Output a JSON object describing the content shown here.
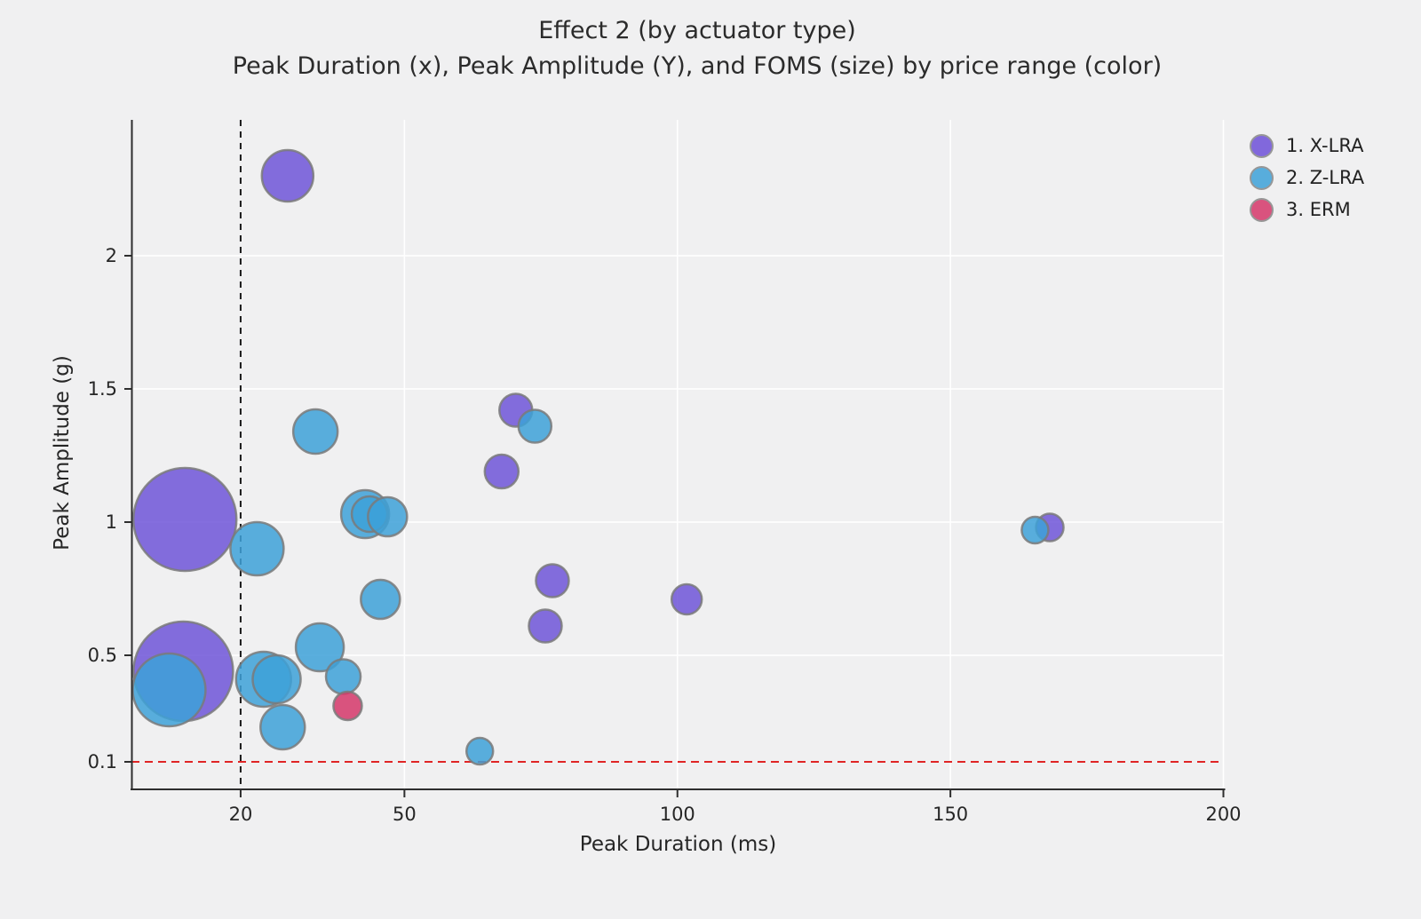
{
  "title": "Effect 2 (by actuator type)",
  "subtitle": "Peak Duration (x), Peak Amplitude (Y), and FOMS (size) by price range (color)",
  "chart_data": {
    "type": "scatter",
    "subtype": "bubble",
    "title": "Effect 2 (by actuator type)",
    "subtitle": "Peak Duration (x), Peak Amplitude (Y), and FOMS (size) by price range (color)",
    "xlabel": "Peak Duration (ms)",
    "ylabel": "Peak Amplitude (g)",
    "xlim": [
      0,
      200
    ],
    "ylim": [
      0,
      2.51
    ],
    "x_ticks": [
      20,
      50,
      100,
      150,
      200
    ],
    "y_ticks": [
      0.1,
      0.5,
      1,
      1.5,
      2
    ],
    "grid": true,
    "grid_color": "#ffffff",
    "background_color": "#f0f0f1",
    "legend_position": "top-right",
    "marker_stroke_color": "#7a7a7a",
    "reference_lines": [
      {
        "orientation": "vertical",
        "value": 20,
        "style": "dashed",
        "color": "#1c1c1c"
      },
      {
        "orientation": "horizontal",
        "value": 0.1,
        "style": "dashed",
        "color": "#e02525"
      }
    ],
    "legend": [
      {
        "label": "1. X-LRA",
        "color": "#8168dc"
      },
      {
        "label": "2. Z-LRA",
        "color": "#58addc"
      },
      {
        "label": "3. ERM",
        "color": "#d9537e"
      }
    ],
    "series": [
      {
        "name": "1. X-LRA",
        "color": "#6f55d8",
        "points": [
          {
            "x": 28.6,
            "y": 2.3,
            "r": 29
          },
          {
            "x": 9.8,
            "y": 1.01,
            "r": 58
          },
          {
            "x": 9.5,
            "y": 0.44,
            "r": 56
          },
          {
            "x": 70.4,
            "y": 1.42,
            "r": 18.5
          },
          {
            "x": 67.8,
            "y": 1.19,
            "r": 19
          },
          {
            "x": 77.1,
            "y": 0.78,
            "r": 18.5
          },
          {
            "x": 75.8,
            "y": 0.61,
            "r": 18.5
          },
          {
            "x": 101.7,
            "y": 0.71,
            "r": 17
          },
          {
            "x": 168.2,
            "y": 0.98,
            "r": 15.5
          }
        ]
      },
      {
        "name": "2. Z-LRA",
        "color": "#3da1d8",
        "points": [
          {
            "x": 33.7,
            "y": 1.34,
            "r": 25
          },
          {
            "x": 73.9,
            "y": 1.36,
            "r": 18.5
          },
          {
            "x": 23.0,
            "y": 0.9,
            "r": 30
          },
          {
            "x": 42.8,
            "y": 1.03,
            "r": 27
          },
          {
            "x": 43.6,
            "y": 1.03,
            "r": 20
          },
          {
            "x": 46.9,
            "y": 1.02,
            "r": 22
          },
          {
            "x": 45.6,
            "y": 0.71,
            "r": 22
          },
          {
            "x": 165.5,
            "y": 0.97,
            "r": 15
          },
          {
            "x": 6.9,
            "y": 0.37,
            "r": 41
          },
          {
            "x": 24.2,
            "y": 0.41,
            "r": 31
          },
          {
            "x": 26.6,
            "y": 0.41,
            "r": 27
          },
          {
            "x": 34.5,
            "y": 0.53,
            "r": 27
          },
          {
            "x": 38.8,
            "y": 0.42,
            "r": 19.5
          },
          {
            "x": 27.7,
            "y": 0.23,
            "r": 25
          },
          {
            "x": 63.8,
            "y": 0.14,
            "r": 15
          }
        ]
      },
      {
        "name": "3. ERM",
        "color": "#d5376a",
        "points": [
          {
            "x": 39.6,
            "y": 0.31,
            "r": 16
          }
        ]
      }
    ]
  }
}
